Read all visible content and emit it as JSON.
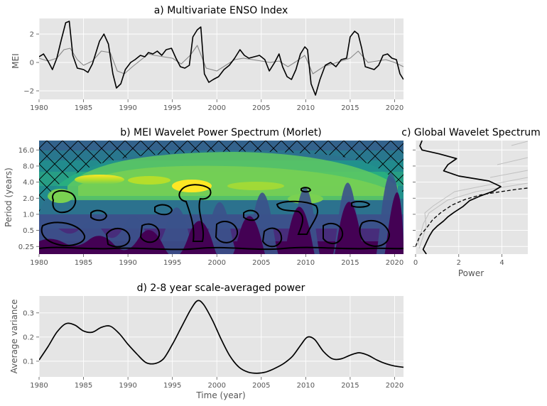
{
  "colors": {
    "panel_bg": "#e5e5e5",
    "grid": "#ffffff",
    "line": "#000000",
    "secondary_line": "#888888",
    "text": "#555555"
  },
  "chart_data": [
    {
      "panel": "a",
      "type": "line",
      "title": "a) Multivariate ENSO Index",
      "xlabel": "",
      "ylabel": "MEI",
      "xlim": [
        1980,
        2021
      ],
      "ylim": [
        -2.6,
        3.1
      ],
      "grid": true,
      "xticks": [
        "1980",
        "1985",
        "1990",
        "1995",
        "2000",
        "2005",
        "2010",
        "2015",
        "2020"
      ],
      "yticks": [
        "−2",
        "0",
        "2"
      ],
      "series": [
        {
          "color": "#000000",
          "x": [
            1980.0,
            1980.5,
            1981.0,
            1981.5,
            1982.0,
            1982.5,
            1983.0,
            1983.4,
            1983.8,
            1984.3,
            1985.0,
            1985.5,
            1986.0,
            1986.8,
            1987.3,
            1987.8,
            1988.3,
            1988.7,
            1989.2,
            1989.7,
            1990.3,
            1990.8,
            1991.4,
            1991.9,
            1992.3,
            1992.8,
            1993.3,
            1993.8,
            1994.3,
            1994.9,
            1995.4,
            1995.9,
            1996.4,
            1996.9,
            1997.3,
            1997.8,
            1998.2,
            1998.6,
            1999.1,
            1999.6,
            2000.2,
            2000.8,
            2001.4,
            2002.0,
            2002.6,
            2003.1,
            2003.6,
            2004.2,
            2004.8,
            2005.4,
            2005.9,
            2006.5,
            2007.0,
            2007.4,
            2007.9,
            2008.4,
            2008.9,
            2009.4,
            2009.9,
            2010.2,
            2010.6,
            2011.1,
            2011.6,
            2012.2,
            2012.8,
            2013.4,
            2014.0,
            2014.6,
            2015.0,
            2015.5,
            2015.9,
            2016.3,
            2016.7,
            2017.2,
            2017.7,
            2018.2,
            2018.7,
            2019.2,
            2019.7,
            2020.2,
            2020.6,
            2021.0
          ],
          "y": [
            0.4,
            0.6,
            0.1,
            -0.5,
            0.3,
            1.6,
            2.8,
            2.9,
            0.5,
            -0.4,
            -0.5,
            -0.7,
            -0.1,
            1.5,
            2.0,
            1.3,
            -0.8,
            -1.8,
            -1.5,
            -0.5,
            0.0,
            0.2,
            0.5,
            0.4,
            0.7,
            0.6,
            0.8,
            0.5,
            0.9,
            1.0,
            0.3,
            -0.3,
            -0.4,
            -0.2,
            1.8,
            2.3,
            2.5,
            -0.8,
            -1.4,
            -1.2,
            -1.0,
            -0.5,
            -0.2,
            0.3,
            0.9,
            0.5,
            0.3,
            0.4,
            0.5,
            0.2,
            -0.6,
            0.0,
            0.6,
            -0.3,
            -1.0,
            -1.2,
            -0.5,
            0.6,
            1.1,
            0.9,
            -1.5,
            -2.3,
            -1.2,
            -0.2,
            0.0,
            -0.3,
            0.2,
            0.3,
            1.8,
            2.2,
            2.0,
            1.0,
            -0.3,
            -0.4,
            -0.5,
            -0.2,
            0.5,
            0.6,
            0.3,
            0.2,
            -0.8,
            -1.2
          ]
        },
        {
          "color": "#888888",
          "x": [
            1980.0,
            1981.0,
            1982.0,
            1982.8,
            1983.5,
            1984.3,
            1985.0,
            1986.0,
            1987.0,
            1988.0,
            1988.8,
            1989.6,
            1990.5,
            1991.5,
            1992.3,
            1993.0,
            1994.0,
            1995.0,
            1996.0,
            1997.0,
            1997.8,
            1998.8,
            2000.0,
            2001.0,
            2002.0,
            2003.0,
            2004.0,
            2005.0,
            2006.0,
            2007.0,
            2008.0,
            2009.0,
            2009.9,
            2010.8,
            2012.0,
            2013.0,
            2014.0,
            2015.0,
            2015.9,
            2017.0,
            2018.0,
            2019.0,
            2020.0,
            2021.0
          ],
          "y": [
            0.3,
            0.1,
            0.3,
            0.9,
            1.0,
            0.2,
            -0.2,
            0.1,
            0.8,
            0.7,
            -0.6,
            -0.8,
            -0.3,
            0.2,
            0.6,
            0.5,
            0.4,
            0.3,
            -0.1,
            0.5,
            1.2,
            -0.4,
            -0.6,
            -0.2,
            0.2,
            0.3,
            0.2,
            0.1,
            0.0,
            0.1,
            -0.3,
            0.1,
            0.5,
            -0.8,
            -0.3,
            -0.1,
            0.1,
            0.3,
            0.8,
            0.0,
            0.1,
            0.2,
            0.0,
            -0.3
          ]
        }
      ]
    },
    {
      "panel": "b",
      "type": "heatmap",
      "title": "b) MEI Wavelet Power Spectrum (Morlet)",
      "xlabel": "",
      "ylabel": "Period (years)",
      "xlim": [
        1980,
        2021
      ],
      "yscale": "log2",
      "ylim": [
        0.18,
        24
      ],
      "xticks": [
        "1980",
        "1985",
        "1990",
        "1995",
        "2000",
        "2005",
        "2010",
        "2015",
        "2020"
      ],
      "yticks": [
        "16.0",
        "8.0",
        "4.0",
        "2.0",
        "1.0",
        "0.5",
        "0.25"
      ],
      "colormap": "viridis",
      "cone_of_influence": "hatched",
      "significant_regions": [
        {
          "center": [
            1983.0,
            2.0
          ]
        },
        {
          "center": [
            1997.5,
            2.6
          ]
        },
        {
          "center": [
            2011.5,
            1.6
          ]
        },
        {
          "center": [
            1992.5,
            1.2
          ]
        },
        {
          "center": [
            1988.0,
            1.0
          ]
        },
        {
          "center": [
            2016.5,
            1.3
          ]
        }
      ]
    },
    {
      "panel": "c",
      "type": "line",
      "title": "c) Global Wavelet Spectrum",
      "xlabel": "Power",
      "ylabel": "",
      "yscale": "log2",
      "xlim": [
        0,
        5.2
      ],
      "xticks": [
        "0",
        "2",
        "4"
      ],
      "series": [
        {
          "color": "#000000",
          "style": "solid",
          "power": [
            0.5,
            0.35,
            0.45,
            0.55,
            0.65,
            0.8,
            1.0,
            1.3,
            1.5,
            1.8,
            2.2,
            2.5,
            3.0,
            3.6,
            3.95,
            3.4,
            2.0,
            1.3,
            1.5,
            1.9,
            1.1,
            0.3,
            0.2,
            0.3
          ],
          "period": [
            0.18,
            0.22,
            0.27,
            0.33,
            0.4,
            0.5,
            0.6,
            0.75,
            0.9,
            1.1,
            1.4,
            1.8,
            2.2,
            2.7,
            3.3,
            4.2,
            5.2,
            6.5,
            8.5,
            11.0,
            13.5,
            16.0,
            19.0,
            24.0
          ]
        },
        {
          "color": "#000000",
          "style": "dashed",
          "power": [
            0.0,
            0.2,
            0.5,
            0.8,
            1.2,
            1.7,
            2.3,
            3.0,
            3.8,
            4.6,
            5.2
          ],
          "period": [
            0.25,
            0.4,
            0.55,
            0.8,
            1.1,
            1.5,
            1.9,
            2.3,
            2.6,
            2.9,
            3.1
          ]
        }
      ]
    },
    {
      "panel": "d",
      "type": "line",
      "title": "d) 2-8 year scale-averaged power",
      "xlabel": "Time (year)",
      "ylabel": "Average variance",
      "xlim": [
        1980,
        2021
      ],
      "ylim": [
        0.035,
        0.37
      ],
      "xticks": [
        "1980",
        "1985",
        "1990",
        "1995",
        "2000",
        "2005",
        "2010",
        "2015",
        "2020"
      ],
      "yticks": [
        "0.1",
        "0.2",
        "0.3"
      ],
      "series": [
        {
          "color": "#000000",
          "x": [
            1980,
            1981,
            1982,
            1983,
            1984,
            1985,
            1986,
            1987,
            1988,
            1989,
            1990,
            1991,
            1992,
            1993,
            1994,
            1995,
            1996,
            1997,
            1997.8,
            1998.5,
            1999.5,
            2000.5,
            2001.5,
            2002.5,
            2003.5,
            2004.5,
            2005.5,
            2006.5,
            2007.5,
            2008.5,
            2009.5,
            2010.2,
            2011,
            2012,
            2013,
            2014,
            2015,
            2016,
            2017,
            2018,
            2019,
            2020,
            2021
          ],
          "y": [
            0.105,
            0.16,
            0.22,
            0.255,
            0.25,
            0.225,
            0.22,
            0.24,
            0.245,
            0.215,
            0.17,
            0.13,
            0.095,
            0.09,
            0.11,
            0.17,
            0.24,
            0.31,
            0.35,
            0.335,
            0.27,
            0.19,
            0.12,
            0.075,
            0.055,
            0.05,
            0.055,
            0.07,
            0.09,
            0.12,
            0.17,
            0.2,
            0.19,
            0.14,
            0.11,
            0.11,
            0.125,
            0.135,
            0.125,
            0.105,
            0.09,
            0.08,
            0.075
          ]
        }
      ]
    }
  ]
}
